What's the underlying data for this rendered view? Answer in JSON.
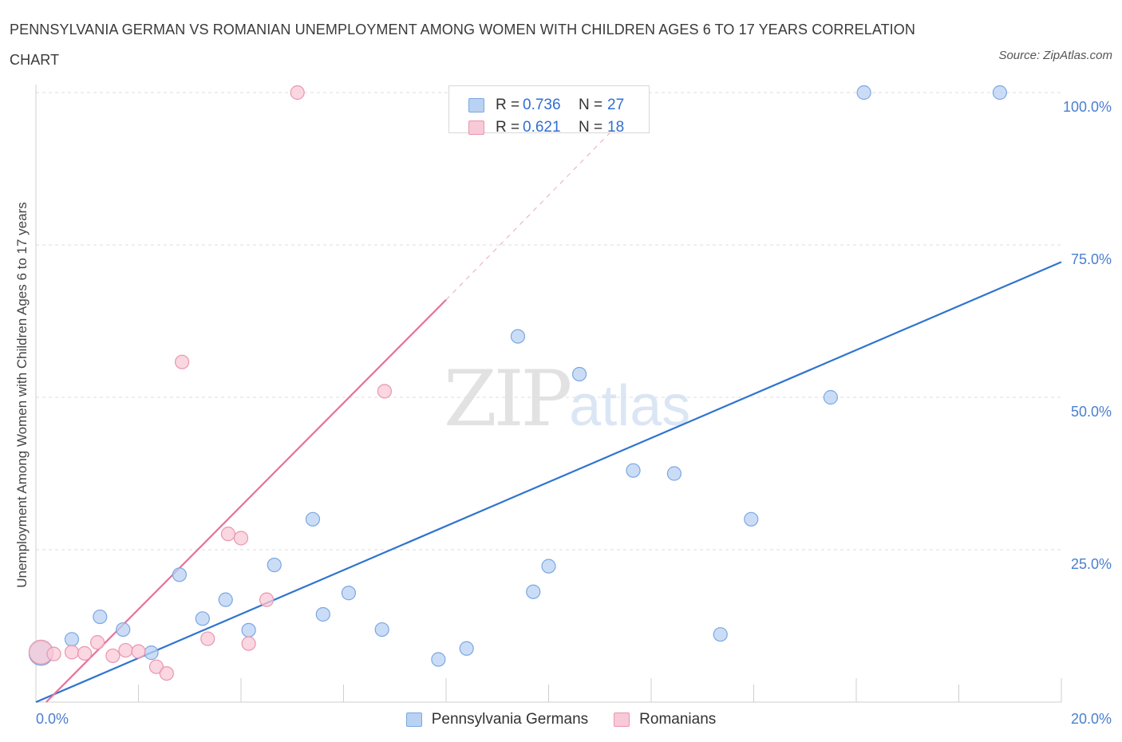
{
  "header": {
    "title": "PENNSYLVANIA GERMAN VS ROMANIAN UNEMPLOYMENT AMONG WOMEN WITH CHILDREN AGES 6 TO 17 YEARS CORRELATION CHART",
    "source": "Source: ZipAtlas.com"
  },
  "watermark": {
    "zip": "ZIP",
    "atlas": "atlas"
  },
  "legend": {
    "r_label": "R =",
    "n_label": "N =",
    "series": [
      {
        "name": "Pennsylvania Germans",
        "r": "0.736",
        "n": "27"
      },
      {
        "name": "Romanians",
        "r": "0.621",
        "n": "18"
      }
    ]
  },
  "colors": {
    "blue_fill": "#b9d2f3",
    "blue_stroke": "#7aa7e3",
    "blue_line": "#2f74d0",
    "pink_fill": "#f8c9d7",
    "pink_stroke": "#e996b0",
    "pink_line": "#e8709a",
    "grid": "#dedede",
    "axis_text": "#4a7fd0"
  },
  "chart_data": {
    "type": "scatter",
    "title": "PENNSYLVANIA GERMAN VS ROMANIAN UNEMPLOYMENT AMONG WOMEN WITH CHILDREN AGES 6 TO 17 YEARS CORRELATION CHART",
    "xlabel": "",
    "ylabel": "Unemployment Among Women with Children Ages 6 to 17 years",
    "xlim": [
      0,
      20
    ],
    "ylim": [
      0,
      100
    ],
    "x_tick_labels": [
      {
        "value": 0,
        "label": "0.0%"
      },
      {
        "value": 20,
        "label": "20.0%"
      }
    ],
    "y_tick_labels": [
      {
        "value": 25,
        "label": "25.0%"
      },
      {
        "value": 50,
        "label": "50.0%"
      },
      {
        "value": 75,
        "label": "75.0%"
      },
      {
        "value": 100,
        "label": "100.0%"
      }
    ],
    "y_gridlines": [
      25,
      50,
      75,
      100
    ],
    "series": [
      {
        "name": "Pennsylvania Germans",
        "r": 0.736,
        "n": 27,
        "points": [
          {
            "x": 0.1,
            "y": 8.0,
            "size": "large"
          },
          {
            "x": 0.7,
            "y": 10.3
          },
          {
            "x": 1.25,
            "y": 14.0
          },
          {
            "x": 1.7,
            "y": 11.9
          },
          {
            "x": 2.25,
            "y": 8.1
          },
          {
            "x": 2.8,
            "y": 20.9
          },
          {
            "x": 3.25,
            "y": 13.7
          },
          {
            "x": 3.7,
            "y": 16.8
          },
          {
            "x": 4.15,
            "y": 11.8
          },
          {
            "x": 4.65,
            "y": 22.5
          },
          {
            "x": 5.4,
            "y": 30.0
          },
          {
            "x": 5.6,
            "y": 14.4
          },
          {
            "x": 6.1,
            "y": 17.9
          },
          {
            "x": 6.75,
            "y": 11.9
          },
          {
            "x": 7.85,
            "y": 7.0
          },
          {
            "x": 8.4,
            "y": 8.8
          },
          {
            "x": 9.4,
            "y": 60.0
          },
          {
            "x": 9.7,
            "y": 18.1
          },
          {
            "x": 10.0,
            "y": 22.3
          },
          {
            "x": 10.6,
            "y": 53.8
          },
          {
            "x": 11.65,
            "y": 38.0
          },
          {
            "x": 12.45,
            "y": 37.5
          },
          {
            "x": 13.95,
            "y": 30.0
          },
          {
            "x": 13.35,
            "y": 11.1
          },
          {
            "x": 15.5,
            "y": 50.0
          },
          {
            "x": 16.15,
            "y": 100.0
          },
          {
            "x": 18.8,
            "y": 100.0
          }
        ],
        "trend": {
          "x0": 0,
          "y0": 0,
          "x1": 20,
          "y1": 72.2
        }
      },
      {
        "name": "Romanians",
        "r": 0.621,
        "n": 18,
        "points": [
          {
            "x": 0.1,
            "y": 8.2,
            "size": "large"
          },
          {
            "x": 0.35,
            "y": 7.9
          },
          {
            "x": 0.7,
            "y": 8.2
          },
          {
            "x": 0.95,
            "y": 8.0
          },
          {
            "x": 1.2,
            "y": 9.8
          },
          {
            "x": 1.5,
            "y": 7.6
          },
          {
            "x": 1.75,
            "y": 8.5
          },
          {
            "x": 2.0,
            "y": 8.3
          },
          {
            "x": 2.35,
            "y": 5.8
          },
          {
            "x": 2.55,
            "y": 4.7
          },
          {
            "x": 2.85,
            "y": 55.8
          },
          {
            "x": 3.35,
            "y": 10.4
          },
          {
            "x": 3.75,
            "y": 27.6
          },
          {
            "x": 4.0,
            "y": 26.9
          },
          {
            "x": 4.15,
            "y": 9.6
          },
          {
            "x": 4.5,
            "y": 16.8
          },
          {
            "x": 5.1,
            "y": 100.0
          },
          {
            "x": 6.8,
            "y": 51.0
          }
        ],
        "trend": {
          "x0": 0.2,
          "y0": 0,
          "x1": 8.0,
          "y1": 66.0
        },
        "trend_dashed_extension": {
          "x0": 8.0,
          "y0": 66.0,
          "x1": 11.5,
          "y1": 96.0
        }
      }
    ]
  }
}
